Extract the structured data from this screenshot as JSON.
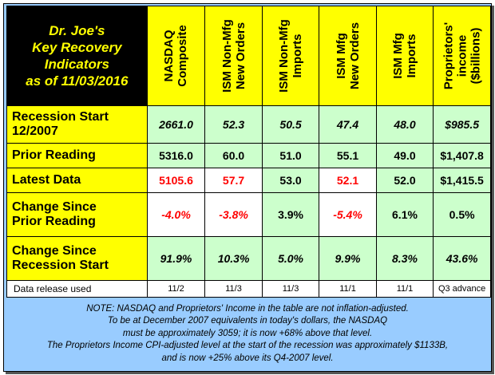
{
  "title": {
    "line1": "Dr. Joe's",
    "line2": "Key Recovery",
    "line3": "Indicators",
    "line4": "as of 11/03/2016"
  },
  "columns": [
    {
      "line1": "NASDAQ",
      "line2": "Composite"
    },
    {
      "line1": "ISM Non-Mfg",
      "line2": "New Orders"
    },
    {
      "line1": "ISM Non-Mfg",
      "line2": "Imports"
    },
    {
      "line1": "ISM Mfg",
      "line2": "New Orders"
    },
    {
      "line1": "ISM Mfg",
      "line2": "Imports"
    },
    {
      "line1": "Proprietors'",
      "line2": "income",
      "line3": "($billions)"
    }
  ],
  "rows": {
    "recession_start": {
      "label_line1": "Recession Start",
      "label_line2": "12/2007",
      "values": [
        "2661.0",
        "52.3",
        "50.5",
        "47.4",
        "48.0",
        "$985.5"
      ]
    },
    "prior_reading": {
      "label": "Prior Reading",
      "values": [
        "5316.0",
        "60.0",
        "51.0",
        "55.1",
        "49.0",
        "$1,407.8"
      ]
    },
    "latest_data": {
      "label": "Latest Data",
      "values": [
        "5105.6",
        "57.7",
        "53.0",
        "52.1",
        "52.0",
        "$1,415.5"
      ]
    },
    "change_prior": {
      "label_line1": "Change Since",
      "label_line2": "Prior Reading",
      "values": [
        "-4.0%",
        "-3.8%",
        "3.9%",
        "-5.4%",
        "6.1%",
        "0.5%"
      ]
    },
    "change_recession": {
      "label_line1": "Change Since",
      "label_line2": "Recession Start",
      "values": [
        "91.9%",
        "10.3%",
        "5.0%",
        "9.9%",
        "8.3%",
        "43.6%"
      ]
    },
    "data_release": {
      "label": "Data release used",
      "values": [
        "11/2",
        "11/3",
        "11/3",
        "11/1",
        "11/1",
        "Q3 advance"
      ]
    }
  },
  "note": [
    "NOTE: NASDAQ and Proprietors' Income in the table are not inflation-adjusted.",
    "To be at December 2007 equivalents in today's dollars, the NASDAQ",
    "must be approximately 3059; it is now +68% above that level.",
    "The Proprietors Income CPI-adjusted level at the start of the recession was approximately $1133B,",
    "and is now +25% above its Q4-2007 level."
  ],
  "colors": {
    "header_yellow": "#ffff00",
    "title_black": "#000000",
    "cell_green": "#ccffcc",
    "background_blue": "#99ccff",
    "negative_red": "#ff0000"
  }
}
